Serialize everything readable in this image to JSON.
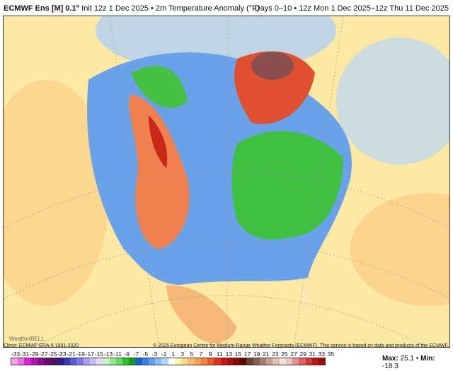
{
  "header": {
    "model": "ECMWF Ens [M] 0.1°",
    "init": "Init 12z 1 Dec 2025 • 2m Temperature Anomaly (°F)",
    "range": "Days 0–10 • 12z Mon 1 Dec 2025–12z Thu 11 Dec 2025"
  },
  "footer": {
    "climo": "Climo: ECMWF ERA-5 1991-2020",
    "copyright": "© 2025 European Centre for Medium-Range Weather Forecasts (ECMWF). This service is based on data and products of the ECMWF.",
    "max_label": "Max:",
    "max": "25.1",
    "sep": "•",
    "min_label": "Min:",
    "min": "-18.3"
  },
  "logo": "WeatherBELL",
  "legend": {
    "labels": [
      "-33",
      "-31",
      "-29",
      "-27",
      "-25",
      "-23",
      "-21",
      "-19",
      "-17",
      "-15",
      "-13",
      "-11",
      "-9",
      "-7",
      "-5",
      "-3",
      "-1",
      "1",
      "3",
      "5",
      "7",
      "9",
      "11",
      "13",
      "15",
      "17",
      "19",
      "21",
      "23",
      "25",
      "27",
      "29",
      "31",
      "33",
      "35"
    ],
    "colors": [
      "#f4a0ea",
      "#ea6fe0",
      "#dc20d8",
      "#b810b0",
      "#900a90",
      "#6c0a70",
      "#501060",
      "#2a1a8c",
      "#3a38b0",
      "#5a5ad8",
      "#7a7ae8",
      "#a8a0f0",
      "#c8c0f4",
      "#e0dcf8",
      "#c8f0c0",
      "#90e888",
      "#60dc60",
      "#30c030",
      "#10a010",
      "#1060d0",
      "#3a80e8",
      "#60a0f0",
      "#88c0f8",
      "#b0d8fc",
      "#ffffff",
      "#fff4b0",
      "#ffd888",
      "#ffbc70",
      "#ffa050",
      "#ff8040",
      "#f05a28",
      "#e03018",
      "#c81810",
      "#a80c0c",
      "#880808",
      "#600404",
      "#6a4030",
      "#8a6050",
      "#a88070",
      "#c8a090",
      "#e0c0b0",
      "#f4e0d8",
      "#f0c0c0",
      "#e89090",
      "#e06060",
      "#d03838",
      "#b81818",
      "#a00808"
    ]
  }
}
